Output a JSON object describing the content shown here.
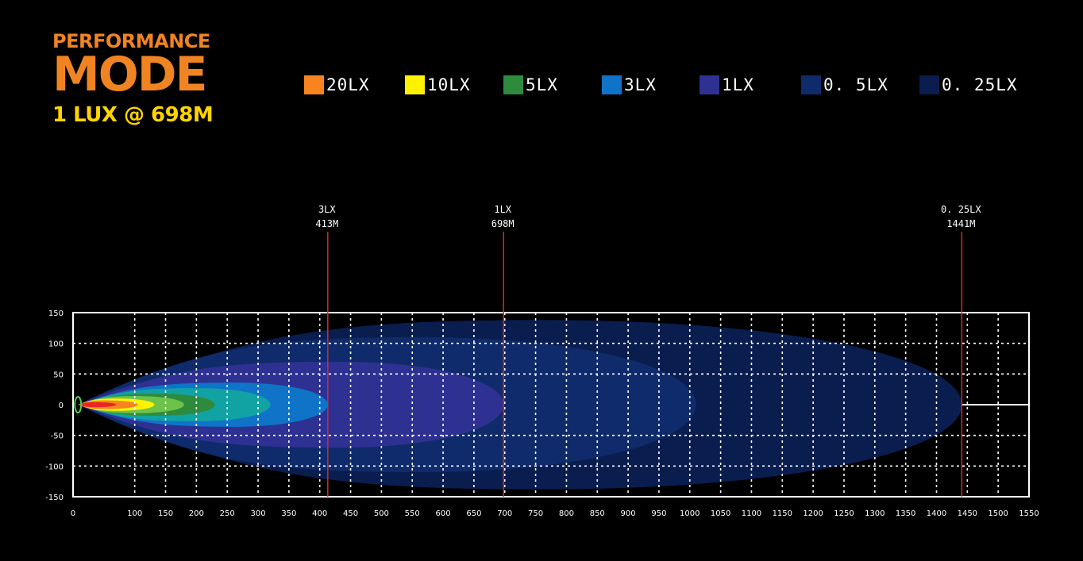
{
  "header": {
    "title_top": "PERFORMANCE",
    "title_main": "MODE",
    "subtitle": "1 LUX @ 698M"
  },
  "chart_data": {
    "type": "heatmap",
    "x_ticks": [
      0,
      100,
      150,
      200,
      250,
      300,
      350,
      400,
      450,
      500,
      550,
      600,
      650,
      700,
      750,
      800,
      850,
      900,
      950,
      1000,
      1050,
      1100,
      1150,
      1200,
      1250,
      1300,
      1350,
      1400,
      1450,
      1500,
      1550
    ],
    "y_ticks": [
      150,
      100,
      50,
      0,
      -50,
      -100,
      -150
    ],
    "xlim": [
      0,
      1550
    ],
    "ylim": [
      -150,
      150
    ],
    "grid": true,
    "legend": [
      {
        "label": "20LX",
        "color": "#f7841f"
      },
      {
        "label": "10LX",
        "color": "#fff200"
      },
      {
        "label": "5LX",
        "color": "#2e8b3e"
      },
      {
        "label": "3LX",
        "color": "#0f74c8"
      },
      {
        "label": "1LX",
        "color": "#2e3192"
      },
      {
        "label": "0. 5LX",
        "color": "#0f2b6b"
      },
      {
        "label": "0. 25LX",
        "color": "#0a1d4f"
      }
    ],
    "contours": [
      {
        "level": "0.25LX",
        "color": "#0a1d4f",
        "reach": 1441,
        "half_width": 138,
        "peak_x": 760
      },
      {
        "level": "0.5LX",
        "color": "#0f2b6b",
        "reach": 1010,
        "half_width": 110,
        "peak_x": 560
      },
      {
        "level": "1LX",
        "color": "#2e3192",
        "reach": 698,
        "half_width": 70,
        "peak_x": 430
      },
      {
        "level": "3LX",
        "color": "#0f74c8",
        "reach": 413,
        "half_width": 36,
        "peak_x": 260
      },
      {
        "level": "teal",
        "color": "#11a3a3",
        "reach": 320,
        "half_width": 27,
        "peak_x": 200
      },
      {
        "level": "5LX",
        "color": "#2e8b3e",
        "reach": 230,
        "half_width": 18,
        "peak_x": 140
      },
      {
        "level": "green",
        "color": "#6cc24a",
        "reach": 180,
        "half_width": 14,
        "peak_x": 100
      },
      {
        "level": "10LX",
        "color": "#fff200",
        "reach": 132,
        "half_width": 10,
        "peak_x": 70
      },
      {
        "level": "20LX",
        "color": "#f7841f",
        "reach": 105,
        "half_width": 7,
        "peak_x": 55
      },
      {
        "level": "core",
        "color": "#e8262a",
        "reach": 70,
        "half_width": 4,
        "peak_x": 35
      }
    ],
    "markers": [
      {
        "label": "3LX",
        "distance_label": "413M",
        "x": 413
      },
      {
        "label": "1LX",
        "distance_label": "698M",
        "x": 698
      },
      {
        "label": "0. 25LX",
        "distance_label": "1441M",
        "x": 1441
      }
    ]
  }
}
